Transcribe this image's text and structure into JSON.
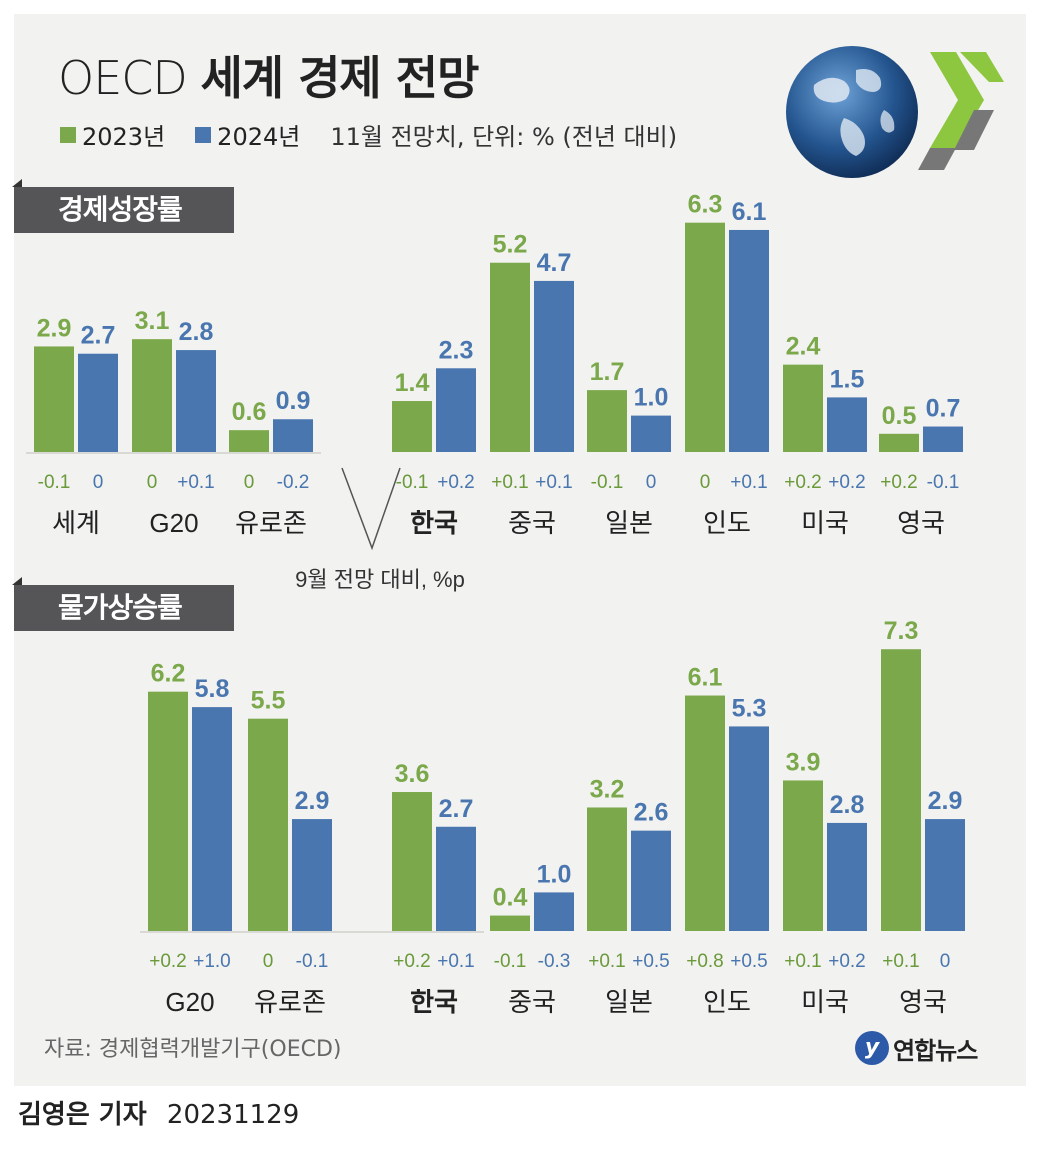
{
  "title": {
    "prefix": "OECD",
    "main": "세계 경제 전망"
  },
  "legend": {
    "s2023": "2023년",
    "s2024": "2024년",
    "note": "11월 전망치, 단위: % (전년 대비)"
  },
  "colors": {
    "s2023": "#7ba84a",
    "s2024": "#4a76b0",
    "change": "#6a9a3a",
    "panel": "#f2f2f0"
  },
  "sections": {
    "growth": "경제성장률",
    "inflation": "물가상승률"
  },
  "callout": "9월 전망 대비, %p",
  "source": "자료: 경제협력개발기구(OECD)",
  "logo_text": "연합뉴스",
  "byline": {
    "name": "김영은 기자",
    "date": "20231129"
  },
  "chart_data": [
    {
      "type": "bar",
      "title": "경제성장률",
      "categories": [
        "세계",
        "G20",
        "유로존",
        "한국",
        "중국",
        "일본",
        "인도",
        "미국",
        "영국"
      ],
      "series": [
        {
          "name": "2023년",
          "values": [
            2.9,
            3.1,
            0.6,
            1.4,
            5.2,
            1.7,
            6.3,
            2.4,
            0.5
          ],
          "changes": [
            "-0.1",
            "0",
            "0",
            "-0.1",
            "+0.1",
            "-0.1",
            "0",
            "+0.2",
            "+0.2"
          ]
        },
        {
          "name": "2024년",
          "values": [
            2.7,
            2.8,
            0.9,
            2.3,
            4.7,
            1.0,
            6.1,
            1.5,
            0.7
          ],
          "changes": [
            "0",
            "+0.1",
            "-0.2",
            "+0.2",
            "+0.1",
            "0",
            "+0.1",
            "+0.2",
            "-0.1"
          ]
        }
      ],
      "changes_label": "9월 전망 대비, %p"
    },
    {
      "type": "bar",
      "title": "물가상승률",
      "categories": [
        "G20",
        "유로존",
        "한국",
        "중국",
        "일본",
        "인도",
        "미국",
        "영국"
      ],
      "series": [
        {
          "name": "2023년",
          "values": [
            6.2,
            5.5,
            3.6,
            0.4,
            3.2,
            6.1,
            3.9,
            7.3
          ],
          "changes": [
            "+0.2",
            "0",
            "+0.2",
            "-0.1",
            "+0.1",
            "+0.8",
            "+0.1",
            "+0.1"
          ]
        },
        {
          "name": "2024년",
          "values": [
            5.8,
            2.9,
            2.7,
            1.0,
            2.6,
            5.3,
            2.8,
            2.9
          ],
          "changes": [
            "+1.0",
            "-0.1",
            "+0.1",
            "-0.3",
            "+0.5",
            "+0.5",
            "+0.2",
            "0"
          ]
        }
      ]
    }
  ]
}
